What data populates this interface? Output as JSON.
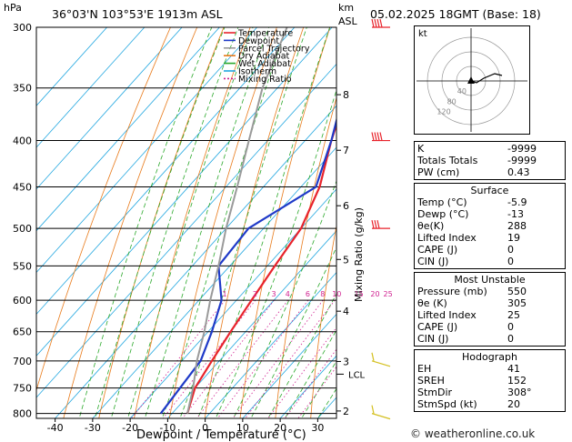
{
  "header": {
    "hpa_label": "hPa",
    "location": "36°03'N  103°53'E  1913m  ASL",
    "km_label": "km",
    "asl_label": "ASL",
    "datetime": "05.02.2025  18GMT  (Base: 18)"
  },
  "legend": [
    {
      "label": "Temperature",
      "color": "#e8232b",
      "dash": ""
    },
    {
      "label": "Dewpoint",
      "color": "#1f3ac8",
      "dash": ""
    },
    {
      "label": "Parcel Trajectory",
      "color": "#9a9a9a",
      "dash": ""
    },
    {
      "label": "Dry Adiabat",
      "color": "#e87a1a",
      "dash": ""
    },
    {
      "label": "Wet Adiabat",
      "color": "#2aa82a",
      "dash": ""
    },
    {
      "label": "Isotherm",
      "color": "#22a7e0",
      "dash": ""
    },
    {
      "label": "Mixing Ratio",
      "color": "#d02090",
      "dash": "2,2"
    }
  ],
  "chart_data": {
    "type": "line",
    "title": "",
    "xlabel": "Dewpoint / Temperature (°C)",
    "ylabel": "",
    "right_axis_label": "Mixing Ratio (g/kg)",
    "xlim": [
      -45,
      35
    ],
    "ylim_hpa": [
      300,
      600
    ],
    "x_ticks": [
      "-40",
      "-30",
      "-20",
      "-10",
      "0",
      "10",
      "20",
      "30"
    ],
    "pressure_levels": [
      "300",
      "350",
      "400",
      "450",
      "500",
      "550",
      "600",
      "650",
      "700",
      "750",
      "800"
    ],
    "km_ticks": [
      {
        "km": "8",
        "p": 356
      },
      {
        "km": "7",
        "p": 410
      },
      {
        "km": "6",
        "p": 472
      },
      {
        "km": "5",
        "p": 541
      },
      {
        "km": "4",
        "p": 617
      },
      {
        "km": "3",
        "p": 701
      },
      {
        "km": "2",
        "p": 795
      }
    ],
    "lcl": {
      "label": "LCL",
      "p": 724
    },
    "mixing_ratio_labels": [
      "1",
      "2",
      "3",
      "4",
      "6",
      "8",
      "10",
      "15",
      "20",
      "25"
    ],
    "series": [
      {
        "name": "Temperature",
        "color": "#e8232b",
        "p": [
          800,
          750,
          700,
          650,
          600,
          550,
          500,
          450,
          400,
          350,
          300
        ],
        "t": [
          -5.9,
          -10,
          -12,
          -14,
          -16,
          -18,
          -20,
          -25,
          -33,
          -41,
          -50
        ]
      },
      {
        "name": "Dewpoint",
        "color": "#1f3ac8",
        "p": [
          800,
          750,
          700,
          650,
          600,
          550,
          500,
          450,
          400,
          350,
          300
        ],
        "t": [
          -13,
          -14,
          -15,
          -19,
          -24,
          -33,
          -34,
          -26,
          -33,
          -42,
          -52
        ]
      },
      {
        "name": "Parcel Trajectory",
        "color": "#9a9a9a",
        "p": [
          800,
          750,
          724,
          700,
          650,
          600,
          550,
          500,
          450,
          400,
          350,
          300
        ],
        "t": [
          -5.9,
          -10.5,
          -13.3,
          -16,
          -21,
          -27,
          -33,
          -40,
          -47,
          -55,
          -64,
          -72
        ]
      }
    ],
    "wind_barbs": [
      {
        "p": 300,
        "dir": 270,
        "kt": 60
      },
      {
        "p": 400,
        "dir": 270,
        "kt": 50
      },
      {
        "p": 500,
        "dir": 290,
        "kt": 30
      },
      {
        "p": 700,
        "dir": 300,
        "kt": 10
      },
      {
        "p": 800,
        "dir": 308,
        "kt": 5
      }
    ]
  },
  "hodograph": {
    "label": "kt",
    "ring_labels": [
      "40",
      "80",
      "120"
    ]
  },
  "indices": {
    "k_label": "K",
    "k": "-9999",
    "tt_label": "Totals Totals",
    "tt": "-9999",
    "pw_label": "PW (cm)",
    "pw": "0.43"
  },
  "surface": {
    "title": "Surface",
    "temp_label": "Temp (°C)",
    "temp": "-5.9",
    "dewp_label": "Dewp (°C)",
    "dewp": "-13",
    "theta_label": "θe(K)",
    "theta": "288",
    "li_label": "Lifted Index",
    "li": "19",
    "cape_label": "CAPE (J)",
    "cape": "0",
    "cin_label": "CIN (J)",
    "cin": "0"
  },
  "most_unstable": {
    "title": "Most Unstable",
    "pres_label": "Pressure (mb)",
    "pres": "550",
    "theta_label": "θe (K)",
    "theta": "305",
    "li_label": "Lifted Index",
    "li": "25",
    "cape_label": "CAPE (J)",
    "cape": "0",
    "cin_label": "CIN (J)",
    "cin": "0"
  },
  "hodo_table": {
    "title": "Hodograph",
    "eh_label": "EH",
    "eh": "41",
    "sreh_label": "SREH",
    "sreh": "152",
    "stmdir_label": "StmDir",
    "stmdir": "308°",
    "stmspd_label": "StmSpd (kt)",
    "stmspd": "20"
  },
  "credit": "© weatheronline.co.uk"
}
